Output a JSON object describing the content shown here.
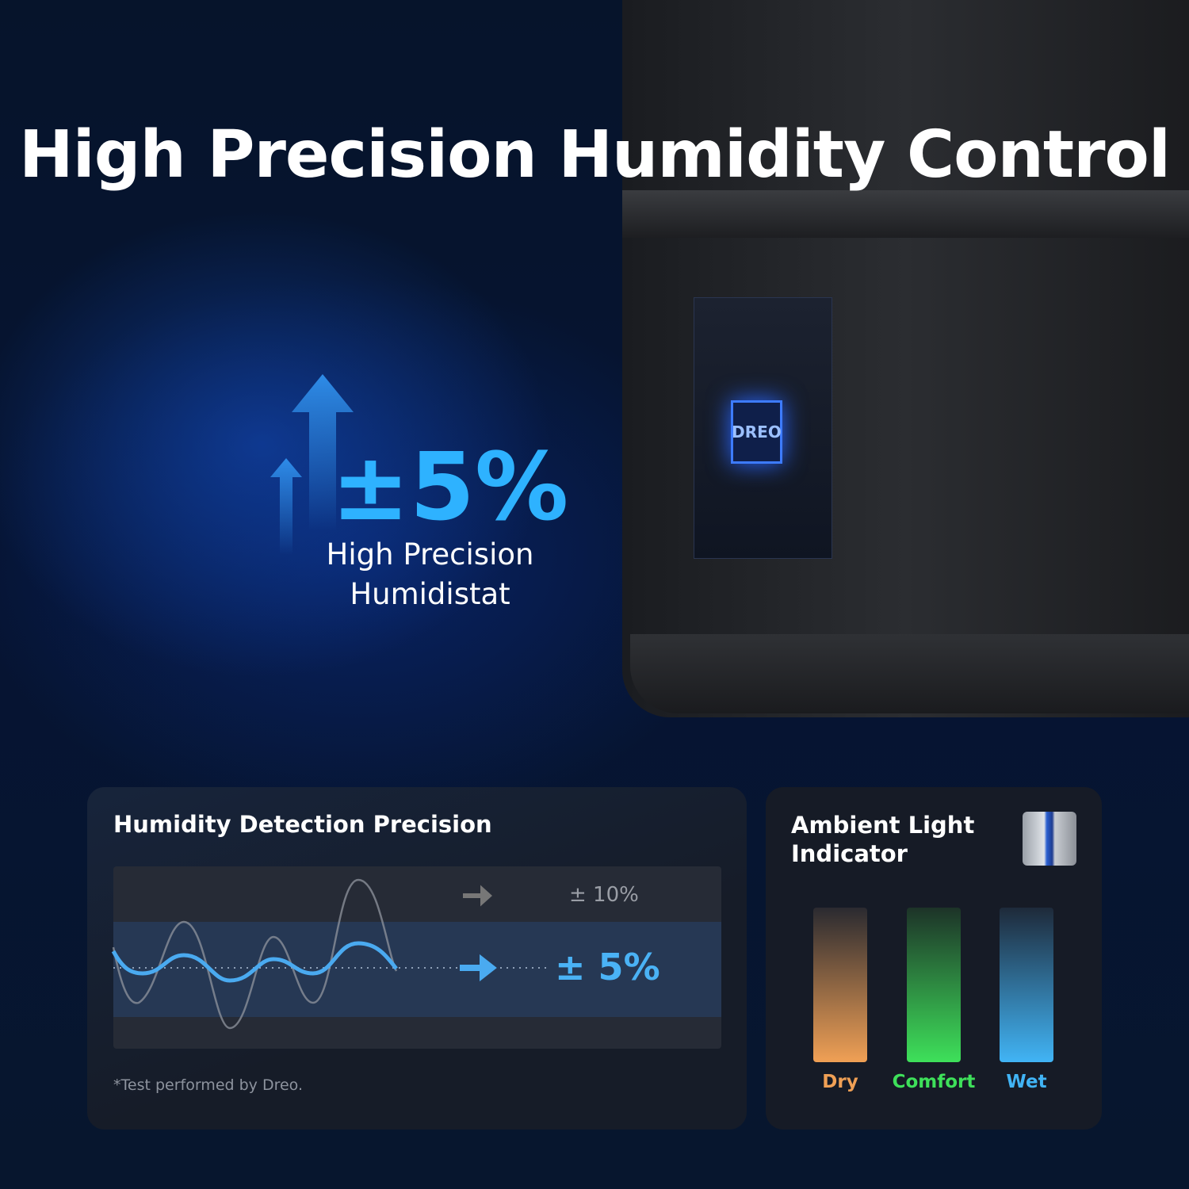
{
  "headline": "High Precision Humidity Control",
  "device": {
    "chip_logo": "DREO"
  },
  "hero": {
    "value": "±5%",
    "label_line1": "High Precision",
    "label_line2": "Humidistat",
    "icon": "arrow-up-icon"
  },
  "precision_card": {
    "title": "Humidity Detection Precision",
    "other_label": "± 10%",
    "dreo_label": "± 5%",
    "footnote": "*Test performed by Dreo.",
    "colors": {
      "dreo_wave": "#4aaaf0",
      "other_wave": "#8a8f98"
    }
  },
  "light_card": {
    "title_line1": "Ambient Light",
    "title_line2": "Indicator",
    "levels": [
      {
        "label": "Dry",
        "color": "#f0a055"
      },
      {
        "label": "Comfort",
        "color": "#3ee05a"
      },
      {
        "label": "Wet",
        "color": "#41b4f5"
      }
    ]
  }
}
